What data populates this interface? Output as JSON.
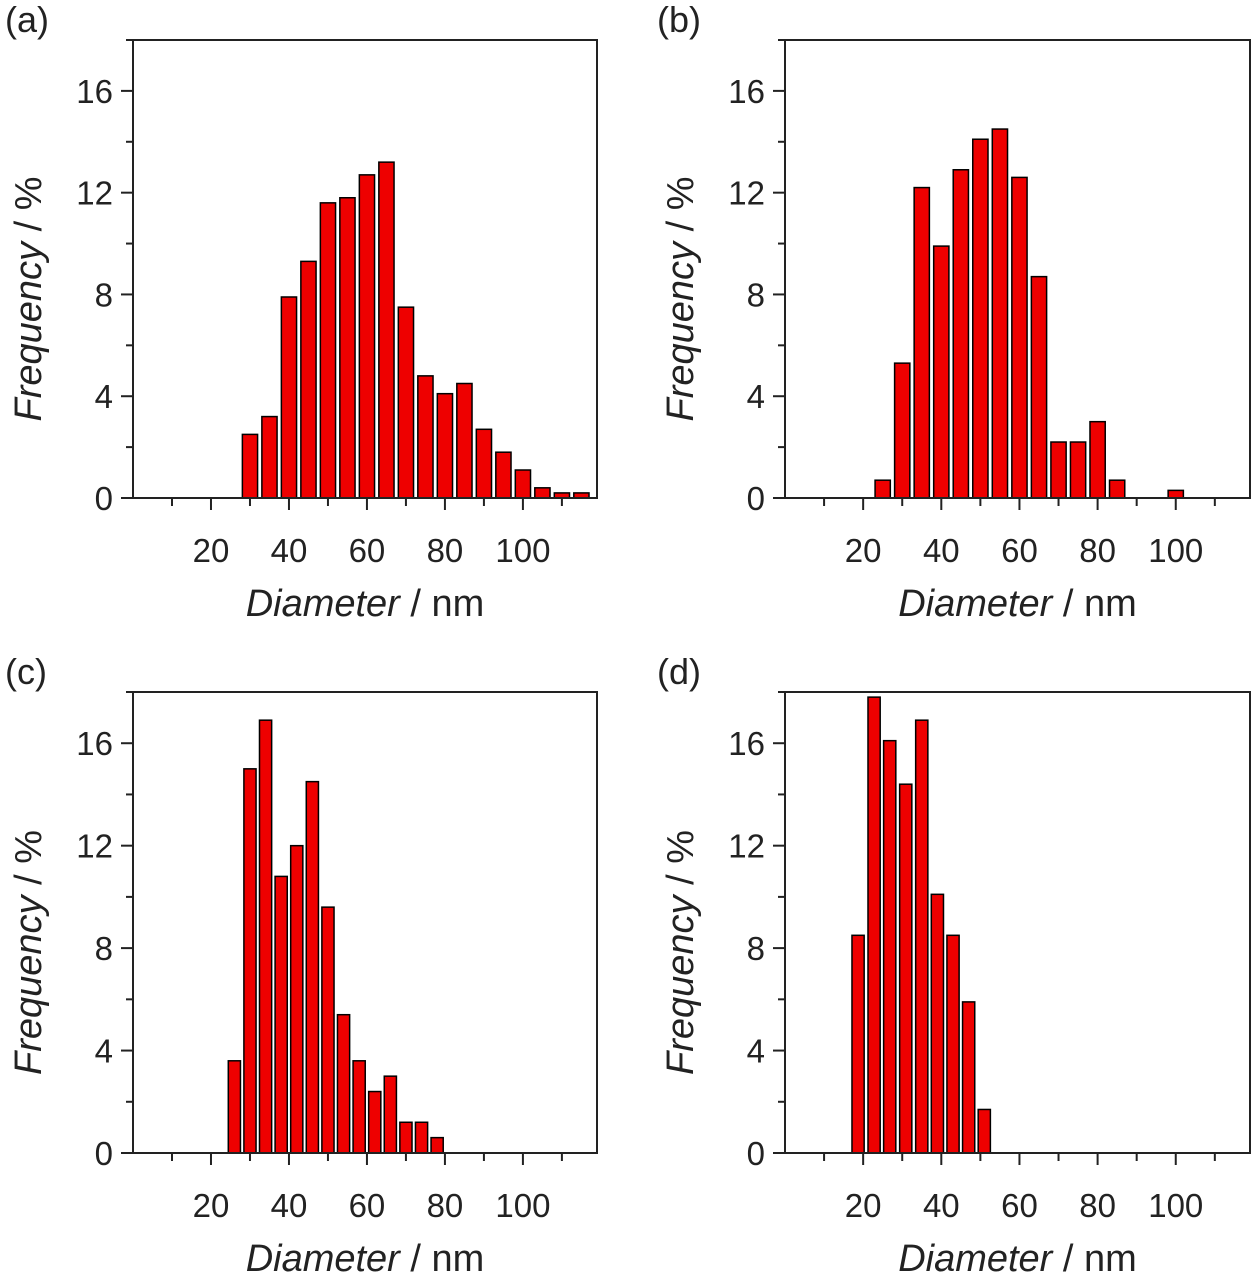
{
  "chart_data": [
    {
      "type": "bar",
      "panel_label": "(a)",
      "xlabel_italic": "Diameter",
      "xlabel_unit": " / nm",
      "ylabel_italic": "Frequency",
      "ylabel_unit": " / %",
      "xlim": [
        0,
        119
      ],
      "ylim": [
        0,
        18
      ],
      "bin_width_nm": 5,
      "xticks": [
        20,
        40,
        60,
        80,
        100
      ],
      "yticks": [
        0,
        4,
        8,
        12,
        16
      ],
      "x": [
        30,
        35,
        40,
        45,
        50,
        55,
        60,
        65,
        70,
        75,
        80,
        85,
        90,
        95,
        100,
        105,
        110,
        115
      ],
      "values": [
        2.5,
        3.2,
        7.9,
        9.3,
        11.6,
        11.8,
        12.7,
        13.2,
        7.5,
        4.8,
        4.1,
        4.5,
        2.7,
        1.8,
        1.1,
        0.4,
        0.2,
        0.2
      ]
    },
    {
      "type": "bar",
      "panel_label": "(b)",
      "xlabel_italic": "Diameter",
      "xlabel_unit": " / nm",
      "ylabel_italic": "Frequency",
      "ylabel_unit": " / %",
      "xlim": [
        0,
        119
      ],
      "ylim": [
        0,
        18
      ],
      "bin_width_nm": 5,
      "xticks": [
        20,
        40,
        60,
        80,
        100
      ],
      "yticks": [
        0,
        4,
        8,
        12,
        16
      ],
      "x": [
        25,
        30,
        35,
        40,
        45,
        50,
        55,
        60,
        65,
        70,
        75,
        80,
        85,
        90,
        95,
        100
      ],
      "values": [
        0.7,
        5.3,
        12.2,
        9.9,
        12.9,
        14.1,
        14.5,
        12.6,
        8.7,
        2.2,
        2.2,
        3.0,
        0.7,
        0,
        0,
        0.3
      ]
    },
    {
      "type": "bar",
      "panel_label": "(c)",
      "xlabel_italic": "Diameter",
      "xlabel_unit": " / nm",
      "ylabel_italic": "Frequency",
      "ylabel_unit": " / %",
      "xlim": [
        0,
        119
      ],
      "ylim": [
        0,
        18
      ],
      "bin_width_nm": 4,
      "xticks": [
        20,
        40,
        60,
        80,
        100
      ],
      "yticks": [
        0,
        4,
        8,
        12,
        16
      ],
      "x": [
        26,
        30,
        34,
        38,
        42,
        46,
        50,
        54,
        58,
        62,
        66,
        70,
        74,
        78
      ],
      "values": [
        3.6,
        15.0,
        16.9,
        10.8,
        12.0,
        14.5,
        9.6,
        5.4,
        3.6,
        2.4,
        3.0,
        1.2,
        1.2,
        0.6
      ]
    },
    {
      "type": "bar",
      "panel_label": "(d)",
      "xlabel_italic": "Diameter",
      "xlabel_unit": " / nm",
      "ylabel_italic": "Frequency",
      "ylabel_unit": " / %",
      "xlim": [
        0,
        119
      ],
      "ylim": [
        0,
        18
      ],
      "bin_width_nm": 4,
      "xticks": [
        20,
        40,
        60,
        80,
        100
      ],
      "yticks": [
        0,
        4,
        8,
        12,
        16
      ],
      "x": [
        18.7,
        22.8,
        26.8,
        30.9,
        35,
        39,
        43,
        47,
        51
      ],
      "values": [
        8.5,
        17.8,
        16.1,
        14.4,
        16.9,
        10.1,
        8.5,
        5.9,
        1.7
      ]
    }
  ],
  "colors": {
    "bar": "#ee0000",
    "outline": "#000000"
  }
}
